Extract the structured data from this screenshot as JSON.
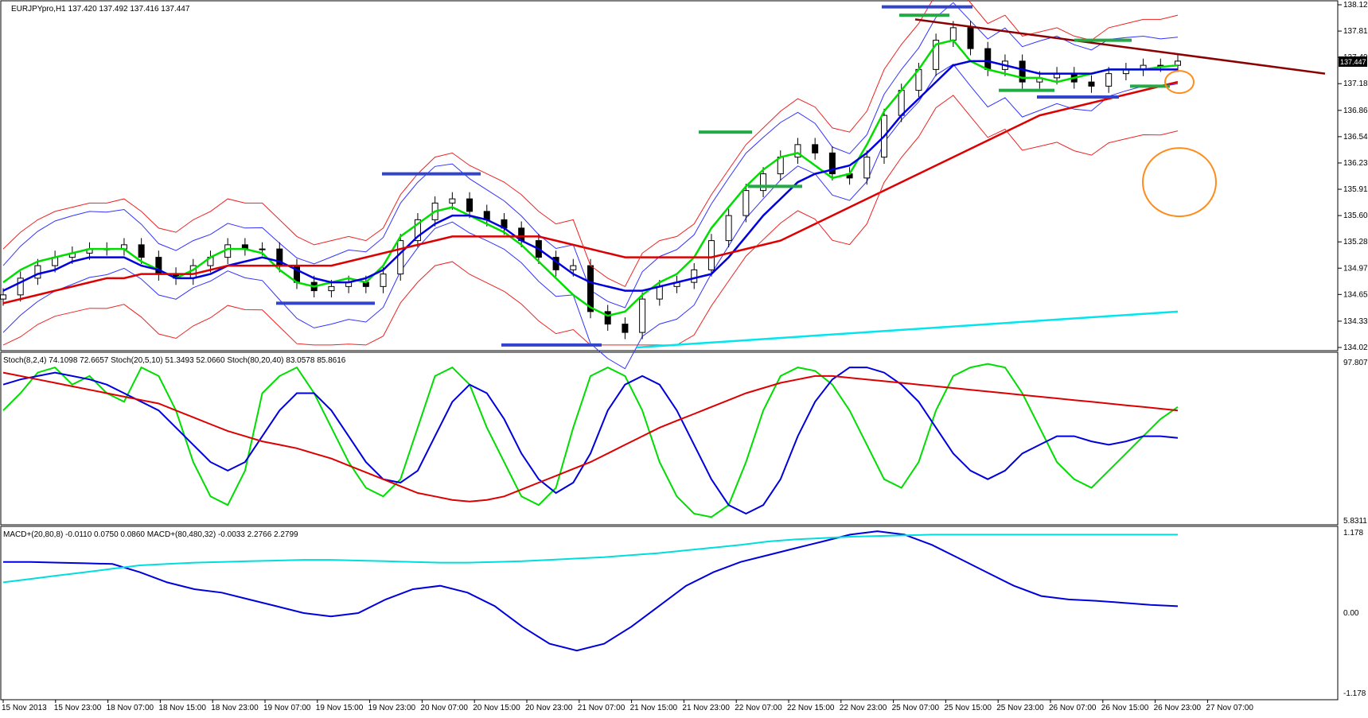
{
  "chart_data": [
    {
      "type": "candlestick",
      "pane": "price",
      "header": "EURJPYpro,H1  137.420 137.492 137.416 137.447",
      "current_price_label": "137.447",
      "y_ticks": [
        "138.125",
        "137.810",
        "137.495",
        "137.180",
        "136.860",
        "136.545",
        "136.230",
        "135.915",
        "135.600",
        "135.285",
        "134.970",
        "134.655",
        "134.335",
        "134.020"
      ],
      "ylim": [
        134.02,
        138.125
      ],
      "x_ticks": [
        "15 Nov 2013",
        "15 Nov 23:00",
        "18 Nov 07:00",
        "18 Nov 15:00",
        "18 Nov 23:00",
        "19 Nov 07:00",
        "19 Nov 15:00",
        "19 Nov 23:00",
        "20 Nov 07:00",
        "20 Nov 15:00",
        "20 Nov 23:00",
        "21 Nov 07:00",
        "21 Nov 15:00",
        "21 Nov 23:00",
        "22 Nov 07:00",
        "22 Nov 15:00",
        "22 Nov 23:00",
        "25 Nov 07:00",
        "25 Nov 15:00",
        "25 Nov 23:00",
        "26 Nov 07:00",
        "26 Nov 15:00",
        "26 Nov 23:00",
        "27 Nov 07:00"
      ],
      "close_series": [
        134.65,
        134.85,
        135.0,
        135.1,
        135.15,
        135.2,
        135.2,
        135.25,
        135.1,
        134.9,
        134.85,
        135.0,
        135.1,
        135.25,
        135.2,
        135.2,
        135.0,
        134.8,
        134.7,
        134.75,
        134.8,
        134.75,
        134.9,
        135.3,
        135.55,
        135.75,
        135.8,
        135.65,
        135.55,
        135.45,
        135.3,
        135.1,
        134.95,
        135.0,
        134.45,
        134.3,
        134.2,
        134.6,
        134.75,
        134.8,
        134.95,
        135.3,
        135.6,
        135.9,
        136.1,
        136.3,
        136.45,
        136.35,
        136.1,
        136.05,
        136.3,
        136.8,
        137.1,
        137.35,
        137.7,
        137.85,
        137.6,
        137.35,
        137.45,
        137.2,
        137.25,
        137.3,
        137.2,
        137.15,
        137.3,
        137.35,
        137.4,
        137.4,
        137.45
      ],
      "ma_series": [
        {
          "color": "#00dd00",
          "values": [
            134.8,
            134.95,
            135.05,
            135.1,
            135.15,
            135.2,
            135.2,
            135.2,
            135.05,
            134.95,
            134.85,
            134.95,
            135.1,
            135.2,
            135.2,
            135.15,
            134.95,
            134.8,
            134.75,
            134.8,
            134.85,
            134.8,
            135.0,
            135.35,
            135.5,
            135.65,
            135.7,
            135.6,
            135.5,
            135.4,
            135.25,
            135.05,
            134.85,
            134.65,
            134.5,
            134.4,
            134.45,
            134.65,
            134.8,
            134.9,
            135.1,
            135.45,
            135.7,
            135.95,
            136.15,
            136.3,
            136.35,
            136.2,
            136.05,
            136.1,
            136.45,
            136.85,
            137.1,
            137.35,
            137.65,
            137.7,
            137.45,
            137.35,
            137.3,
            137.25,
            137.25,
            137.2,
            137.25,
            137.3,
            137.35,
            137.35,
            137.35,
            137.38,
            137.4
          ]
        },
        {
          "color": "#0000dd",
          "values": [
            134.7,
            134.8,
            134.9,
            134.95,
            135.05,
            135.1,
            135.1,
            135.1,
            135.0,
            134.95,
            134.85,
            134.85,
            134.9,
            135.0,
            135.05,
            135.1,
            135.05,
            134.95,
            134.85,
            134.8,
            134.8,
            134.85,
            134.95,
            135.15,
            135.35,
            135.5,
            135.6,
            135.6,
            135.55,
            135.45,
            135.3,
            135.2,
            135.05,
            134.9,
            134.8,
            134.75,
            134.7,
            134.7,
            134.75,
            134.8,
            134.85,
            134.9,
            135.1,
            135.35,
            135.6,
            135.8,
            136.0,
            136.1,
            136.15,
            136.2,
            136.35,
            136.55,
            136.8,
            137.0,
            137.2,
            137.4,
            137.45,
            137.45,
            137.4,
            137.35,
            137.3,
            137.3,
            137.3,
            137.3,
            137.35,
            137.35,
            137.35,
            137.35,
            137.35
          ]
        },
        {
          "color": "#dd0000",
          "values": [
            134.55,
            134.6,
            134.65,
            134.7,
            134.75,
            134.8,
            134.85,
            134.85,
            134.9,
            134.9,
            134.9,
            134.9,
            134.95,
            135.0,
            135.0,
            135.0,
            135.0,
            135.0,
            135.0,
            135.0,
            135.05,
            135.1,
            135.15,
            135.2,
            135.25,
            135.3,
            135.35,
            135.35,
            135.35,
            135.35,
            135.35,
            135.35,
            135.3,
            135.25,
            135.2,
            135.15,
            135.1,
            135.1,
            135.1,
            135.1,
            135.1,
            135.1,
            135.15,
            135.2,
            135.25,
            135.3,
            135.4,
            135.5,
            135.6,
            135.7,
            135.8,
            135.9,
            136.0,
            136.1,
            136.2,
            136.3,
            136.4,
            136.5,
            136.6,
            136.7,
            136.8,
            136.85,
            136.9,
            136.95,
            137.0,
            137.05,
            137.1,
            137.15,
            137.2
          ]
        }
      ],
      "annotations": [
        "resistance trendline",
        "support/resistance level bars",
        "target circles"
      ]
    },
    {
      "type": "line",
      "pane": "stochastic",
      "header": "Stoch(8,2,4) 74.1098 72.6657  Stoch(20,5,10) 51.3493 52.0660  Stoch(80,20,40) 83.0578 85.8616",
      "y_ticks": [
        "97.8071",
        "5.8311"
      ],
      "ylim": [
        5.8311,
        97.8071
      ],
      "series": [
        {
          "color": "#00dd00",
          "values": [
            70,
            80,
            92,
            95,
            85,
            90,
            80,
            75,
            95,
            90,
            70,
            40,
            20,
            15,
            35,
            80,
            90,
            95,
            80,
            60,
            40,
            25,
            20,
            30,
            60,
            90,
            95,
            85,
            60,
            40,
            20,
            15,
            25,
            60,
            90,
            95,
            90,
            70,
            40,
            20,
            10,
            8,
            15,
            40,
            70,
            90,
            95,
            93,
            85,
            70,
            50,
            30,
            25,
            40,
            70,
            90,
            95,
            97,
            95,
            80,
            60,
            40,
            30,
            25,
            35,
            45,
            55,
            65,
            72
          ]
        },
        {
          "color": "#0000dd",
          "values": [
            85,
            88,
            90,
            92,
            90,
            88,
            85,
            80,
            75,
            70,
            60,
            50,
            40,
            35,
            40,
            55,
            70,
            80,
            80,
            70,
            55,
            40,
            30,
            28,
            35,
            55,
            75,
            85,
            80,
            65,
            45,
            30,
            22,
            28,
            45,
            70,
            85,
            90,
            85,
            70,
            50,
            30,
            15,
            10,
            15,
            30,
            55,
            75,
            88,
            95,
            95,
            92,
            85,
            75,
            60,
            45,
            35,
            30,
            35,
            45,
            50,
            55,
            55,
            52,
            50,
            52,
            55,
            55,
            54
          ]
        },
        {
          "color": "#dd0000",
          "values": [
            92,
            90,
            88,
            86,
            84,
            82,
            80,
            78,
            76,
            74,
            70,
            66,
            62,
            58,
            55,
            52,
            50,
            48,
            45,
            42,
            38,
            34,
            30,
            26,
            22,
            20,
            18,
            17,
            18,
            20,
            24,
            28,
            32,
            36,
            40,
            45,
            50,
            55,
            60,
            64,
            68,
            72,
            76,
            80,
            83,
            86,
            88,
            90,
            90,
            89,
            88,
            87,
            86,
            85,
            84,
            83,
            82,
            81,
            80,
            79,
            78,
            77,
            76,
            75,
            74,
            73,
            72,
            71,
            70
          ]
        }
      ]
    },
    {
      "type": "line",
      "pane": "macd",
      "header": "MACD+(20,80,8) -0.0110 0.0750 0.0860  MACD+(80,480,32) -0.0033 2.2766 2.2799",
      "y_ticks": [
        "1.178",
        "0.00",
        "-1.178"
      ],
      "ylim": [
        -1.178,
        1.178
      ],
      "series": [
        {
          "color": "#0000dd",
          "values": [
            0.75,
            0.75,
            0.74,
            0.73,
            0.72,
            0.6,
            0.45,
            0.35,
            0.3,
            0.2,
            0.1,
            0.0,
            -0.05,
            0.0,
            0.2,
            0.35,
            0.4,
            0.3,
            0.1,
            -0.2,
            -0.45,
            -0.55,
            -0.45,
            -0.2,
            0.1,
            0.4,
            0.6,
            0.75,
            0.85,
            0.95,
            1.05,
            1.15,
            1.2,
            1.15,
            1.0,
            0.8,
            0.6,
            0.4,
            0.25,
            0.2,
            0.18,
            0.15,
            0.12,
            0.1
          ]
        },
        {
          "color": "#00dddd",
          "values": [
            0.45,
            0.5,
            0.55,
            0.6,
            0.65,
            0.7,
            0.72,
            0.74,
            0.75,
            0.76,
            0.77,
            0.78,
            0.78,
            0.77,
            0.76,
            0.75,
            0.74,
            0.74,
            0.75,
            0.76,
            0.78,
            0.8,
            0.82,
            0.85,
            0.88,
            0.92,
            0.96,
            1.0,
            1.05,
            1.08,
            1.1,
            1.12,
            1.13,
            1.14,
            1.15,
            1.15,
            1.15,
            1.15,
            1.15,
            1.15,
            1.15,
            1.15,
            1.15,
            1.15
          ]
        }
      ]
    }
  ]
}
